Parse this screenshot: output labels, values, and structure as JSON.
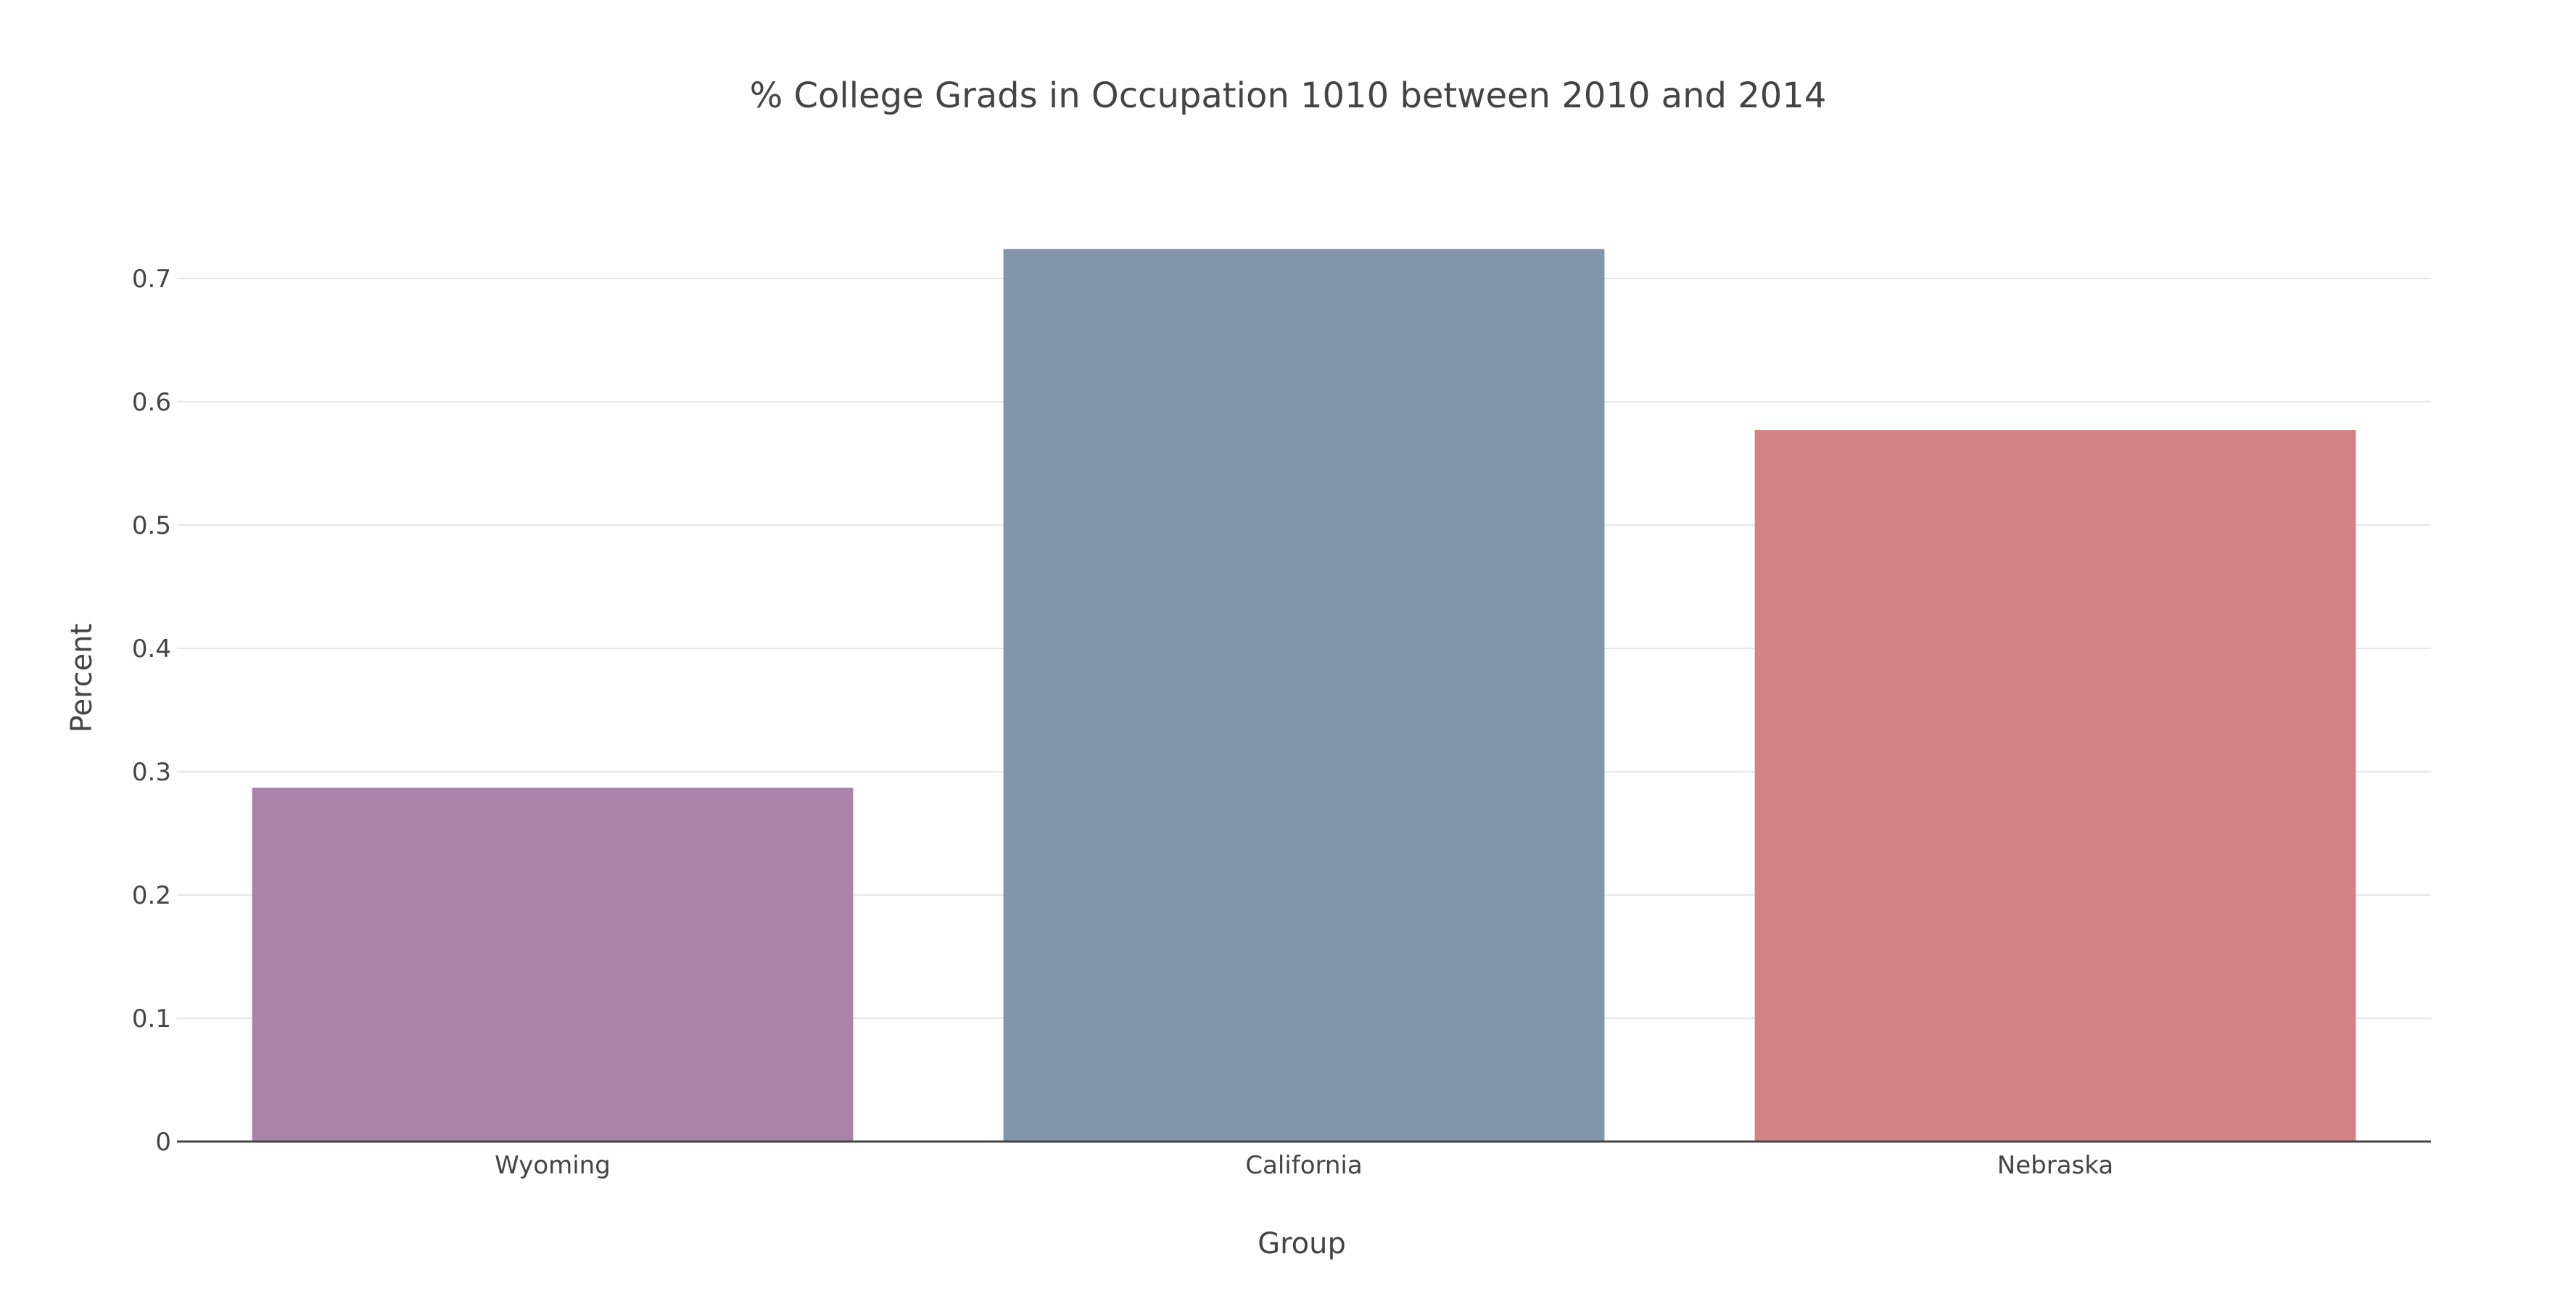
{
  "chart_data": {
    "type": "bar",
    "title": "% College Grads in Occupation 1010 between 2010 and 2014",
    "xlabel": "Group",
    "ylabel": "Percent",
    "categories": [
      "Wyoming",
      "California",
      "Nebraska"
    ],
    "values": [
      0.287,
      0.724,
      0.577
    ],
    "colors": [
      "#a983aa",
      "#8296ab",
      "#d48283"
    ],
    "ylim": [
      0,
      0.74
    ],
    "yticks": [
      0,
      0.1,
      0.2,
      0.3,
      0.4,
      0.5,
      0.6,
      0.7
    ],
    "ytick_labels": [
      "0",
      "0.1",
      "0.2",
      "0.3",
      "0.4",
      "0.5",
      "0.6",
      "0.7"
    ],
    "grid": true,
    "legend": "none"
  }
}
